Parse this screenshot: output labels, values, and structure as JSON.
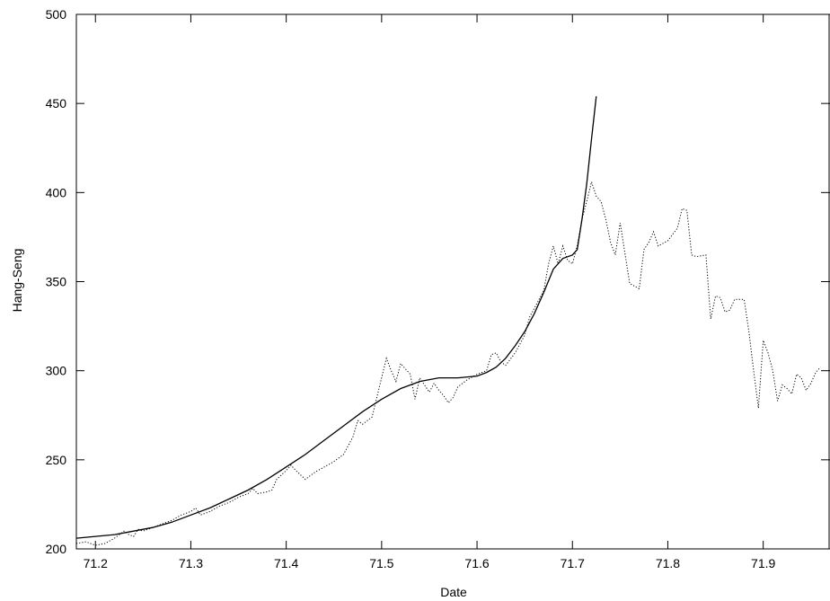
{
  "chart_data": {
    "type": "line",
    "xlabel": "Date",
    "ylabel": "Hang-Seng",
    "xlim": [
      71.18,
      71.97
    ],
    "ylim": [
      200,
      500
    ],
    "x_ticks": [
      71.2,
      71.3,
      71.4,
      71.5,
      71.6,
      71.7,
      71.8,
      71.9
    ],
    "y_ticks": [
      200,
      250,
      300,
      350,
      400,
      450,
      500
    ],
    "grid": false,
    "series": [
      {
        "style": "dotted",
        "color": "#000000",
        "points": [
          [
            71.18,
            203
          ],
          [
            71.19,
            204
          ],
          [
            71.2,
            202
          ],
          [
            71.21,
            203
          ],
          [
            71.22,
            206
          ],
          [
            71.225,
            208
          ],
          [
            71.23,
            210
          ],
          [
            71.235,
            208
          ],
          [
            71.24,
            207
          ],
          [
            71.245,
            211
          ],
          [
            71.25,
            210
          ],
          [
            71.26,
            212
          ],
          [
            71.27,
            214
          ],
          [
            71.28,
            216
          ],
          [
            71.29,
            219
          ],
          [
            71.3,
            221
          ],
          [
            71.305,
            223
          ],
          [
            71.31,
            219
          ],
          [
            71.32,
            221
          ],
          [
            71.33,
            224
          ],
          [
            71.34,
            226
          ],
          [
            71.35,
            229
          ],
          [
            71.36,
            231
          ],
          [
            71.365,
            234
          ],
          [
            71.37,
            231
          ],
          [
            71.38,
            232
          ],
          [
            71.385,
            233
          ],
          [
            71.39,
            239
          ],
          [
            71.4,
            244
          ],
          [
            71.405,
            247
          ],
          [
            71.41,
            244
          ],
          [
            71.42,
            239
          ],
          [
            71.43,
            243
          ],
          [
            71.44,
            246
          ],
          [
            71.45,
            249
          ],
          [
            71.46,
            253
          ],
          [
            71.47,
            263
          ],
          [
            71.475,
            272
          ],
          [
            71.48,
            270
          ],
          [
            71.49,
            274
          ],
          [
            71.495,
            285
          ],
          [
            71.5,
            296
          ],
          [
            71.505,
            307
          ],
          [
            71.51,
            300
          ],
          [
            71.515,
            294
          ],
          [
            71.52,
            304
          ],
          [
            71.525,
            301
          ],
          [
            71.53,
            298
          ],
          [
            71.535,
            284
          ],
          [
            71.54,
            296
          ],
          [
            71.545,
            292
          ],
          [
            71.55,
            288
          ],
          [
            71.555,
            293
          ],
          [
            71.56,
            289
          ],
          [
            71.565,
            286
          ],
          [
            71.57,
            282
          ],
          [
            71.575,
            285
          ],
          [
            71.58,
            291
          ],
          [
            71.59,
            295
          ],
          [
            71.6,
            298
          ],
          [
            71.605,
            299
          ],
          [
            71.61,
            300
          ],
          [
            71.615,
            309
          ],
          [
            71.62,
            310
          ],
          [
            71.625,
            305
          ],
          [
            71.63,
            303
          ],
          [
            71.64,
            310
          ],
          [
            71.65,
            320
          ],
          [
            71.655,
            330
          ],
          [
            71.66,
            335
          ],
          [
            71.67,
            345
          ],
          [
            71.675,
            360
          ],
          [
            71.68,
            370
          ],
          [
            71.685,
            360
          ],
          [
            71.69,
            370
          ],
          [
            71.695,
            362
          ],
          [
            71.7,
            360
          ],
          [
            71.705,
            370
          ],
          [
            71.71,
            385
          ],
          [
            71.715,
            395
          ],
          [
            71.72,
            406
          ],
          [
            71.725,
            398
          ],
          [
            71.73,
            395
          ],
          [
            71.735,
            385
          ],
          [
            71.74,
            372
          ],
          [
            71.745,
            365
          ],
          [
            71.75,
            383
          ],
          [
            71.76,
            349
          ],
          [
            71.77,
            346
          ],
          [
            71.775,
            368
          ],
          [
            71.78,
            372
          ],
          [
            71.785,
            378
          ],
          [
            71.79,
            370
          ],
          [
            71.8,
            373
          ],
          [
            71.81,
            380
          ],
          [
            71.815,
            391
          ],
          [
            71.82,
            390
          ],
          [
            71.825,
            365
          ],
          [
            71.83,
            364
          ],
          [
            71.84,
            365
          ],
          [
            71.845,
            329
          ],
          [
            71.85,
            342
          ],
          [
            71.855,
            341
          ],
          [
            71.86,
            333
          ],
          [
            71.865,
            334
          ],
          [
            71.87,
            340
          ],
          [
            71.88,
            340
          ],
          [
            71.885,
            322
          ],
          [
            71.89,
            300
          ],
          [
            71.895,
            279
          ],
          [
            71.9,
            317
          ],
          [
            71.905,
            310
          ],
          [
            71.91,
            300
          ],
          [
            71.915,
            283
          ],
          [
            71.92,
            292
          ],
          [
            71.925,
            290
          ],
          [
            71.93,
            287
          ],
          [
            71.935,
            298
          ],
          [
            71.94,
            296
          ],
          [
            71.945,
            289
          ],
          [
            71.95,
            293
          ],
          [
            71.955,
            299
          ],
          [
            71.96,
            302
          ]
        ]
      },
      {
        "style": "solid",
        "color": "#000000",
        "points": [
          [
            71.18,
            206
          ],
          [
            71.2,
            207
          ],
          [
            71.22,
            208
          ],
          [
            71.24,
            210
          ],
          [
            71.26,
            212
          ],
          [
            71.28,
            215
          ],
          [
            71.3,
            219
          ],
          [
            71.32,
            223
          ],
          [
            71.34,
            228
          ],
          [
            71.36,
            233
          ],
          [
            71.38,
            239
          ],
          [
            71.4,
            246
          ],
          [
            71.42,
            253
          ],
          [
            71.44,
            261
          ],
          [
            71.46,
            269
          ],
          [
            71.48,
            277
          ],
          [
            71.5,
            284
          ],
          [
            71.52,
            290
          ],
          [
            71.54,
            294
          ],
          [
            71.56,
            296
          ],
          [
            71.58,
            296
          ],
          [
            71.6,
            297
          ],
          [
            71.61,
            299
          ],
          [
            71.62,
            302
          ],
          [
            71.63,
            307
          ],
          [
            71.64,
            314
          ],
          [
            71.65,
            322
          ],
          [
            71.66,
            332
          ],
          [
            71.67,
            344
          ],
          [
            71.68,
            357
          ],
          [
            71.69,
            363
          ],
          [
            71.7,
            365
          ],
          [
            71.705,
            368
          ],
          [
            71.71,
            385
          ],
          [
            71.715,
            405
          ],
          [
            71.72,
            430
          ],
          [
            71.725,
            454
          ]
        ]
      }
    ]
  }
}
